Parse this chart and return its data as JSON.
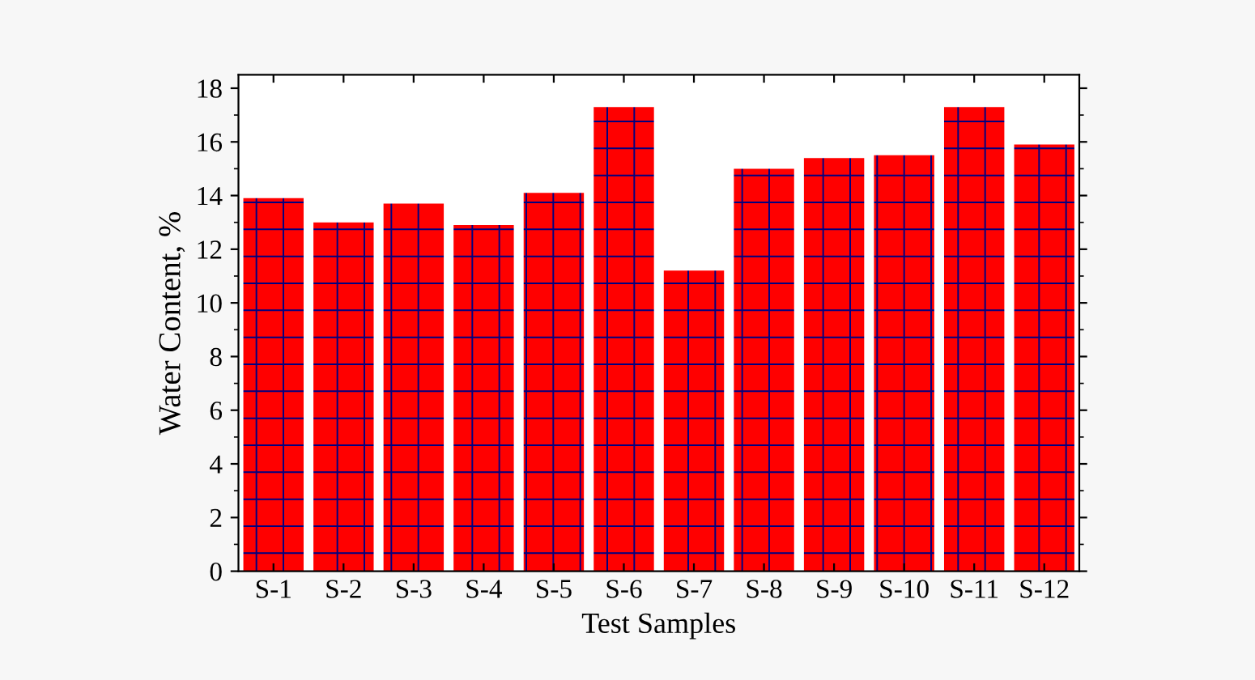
{
  "chart_data": {
    "type": "bar",
    "xlabel": "Test Samples",
    "ylabel": "Water Content, %",
    "categories": [
      "S-1",
      "S-2",
      "S-3",
      "S-4",
      "S-5",
      "S-6",
      "S-7",
      "S-8",
      "S-9",
      "S-10",
      "S-11",
      "S-12"
    ],
    "values": [
      13.9,
      13.0,
      13.7,
      12.9,
      14.1,
      17.3,
      11.2,
      15.0,
      15.4,
      15.5,
      17.3,
      15.9
    ],
    "color": "#ff0000",
    "ylim": [
      0,
      18.5
    ],
    "yticks": [
      0,
      2,
      4,
      6,
      8,
      10,
      12,
      14,
      16,
      18
    ],
    "grid": false,
    "legend": false
  }
}
